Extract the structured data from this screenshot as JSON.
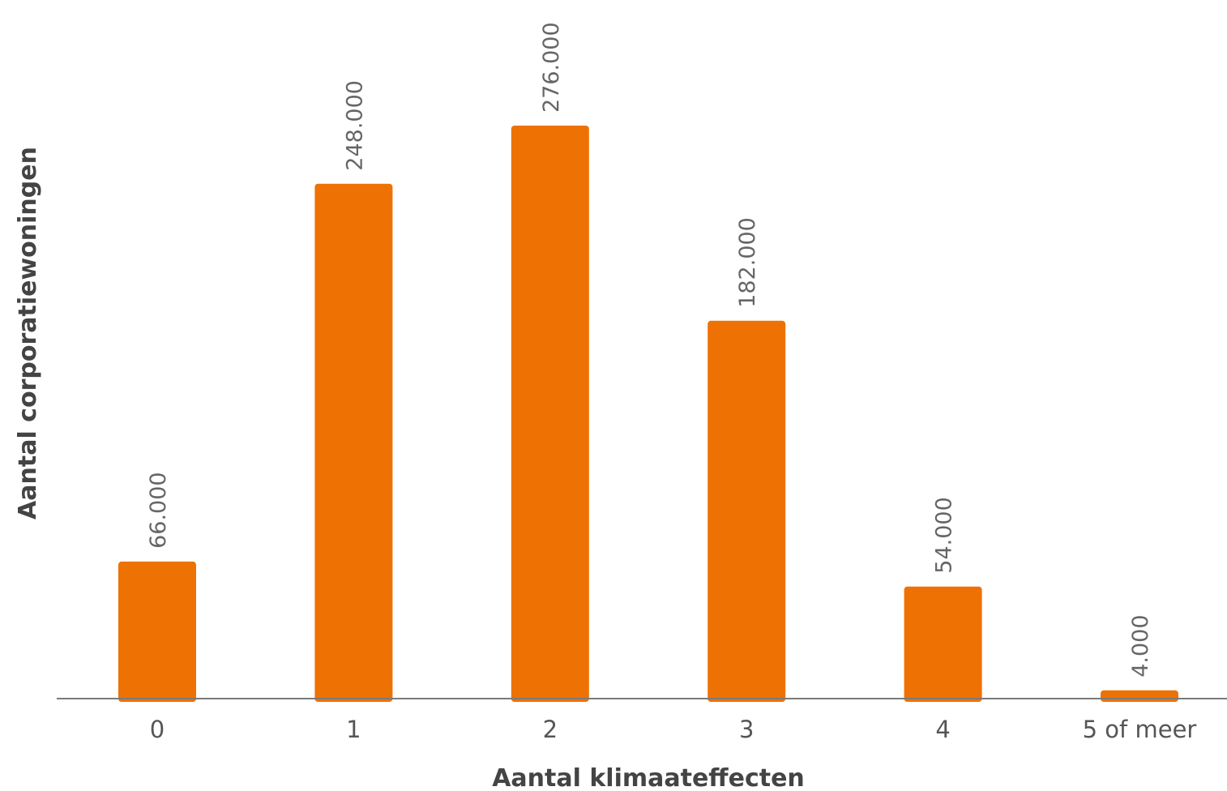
{
  "chart_data": {
    "type": "bar",
    "categories": [
      "0",
      "1",
      "2",
      "3",
      "4",
      "5 of meer"
    ],
    "values": [
      66000,
      248000,
      276000,
      182000,
      54000,
      4000
    ],
    "data_labels": [
      "66.000",
      "248.000",
      "276.000",
      "182.000",
      "54.000",
      "4.000"
    ],
    "xlabel": "Aantal klimaateffecten",
    "ylabel": "Aantal corporatiewoningen",
    "ylim": [
      0,
      276000
    ],
    "grid": false,
    "legend": "none",
    "bar_color": "#EE7203",
    "axis_color": "#7a7a7a"
  }
}
